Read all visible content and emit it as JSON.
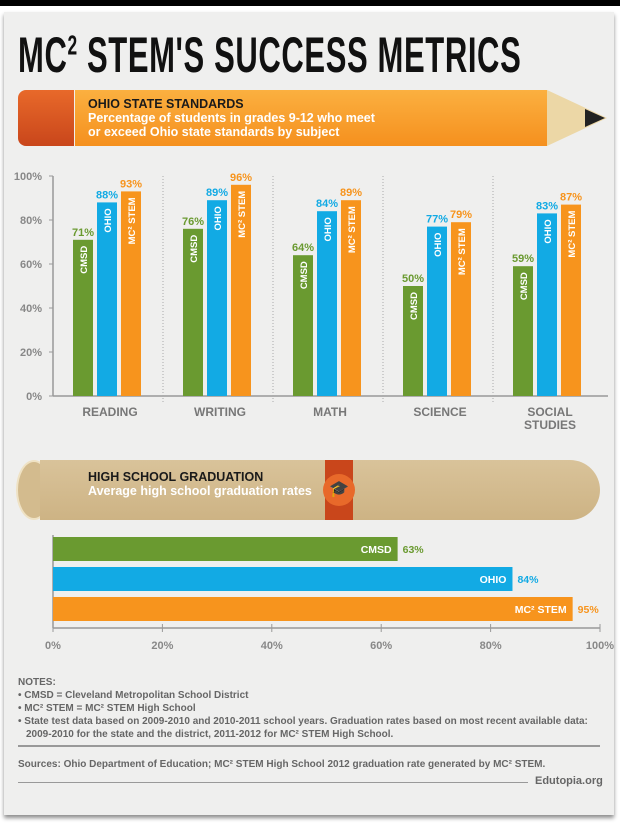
{
  "title": {
    "main": "MC",
    "sup": "2",
    "rest": " STEM'S SUCCESS METRICS"
  },
  "colors": {
    "cmsd": "#6a9a30",
    "ohio": "#12aae4",
    "stem": "#f7941d"
  },
  "section1": {
    "heading": "OHIO STATE STANDARDS",
    "subtitle": "Percentage of students in grades 9-12 who meet or exceed Ohio state standards by subject"
  },
  "section2": {
    "heading": "HIGH SCHOOL GRADUATION",
    "subtitle": "Average high school graduation rates",
    "icon": "graduation-cap-icon"
  },
  "chart_data": [
    {
      "type": "bar",
      "categories": [
        "READING",
        "WRITING",
        "MATH",
        "SCIENCE",
        "SOCIAL STUDIES"
      ],
      "series": [
        {
          "name": "CMSD",
          "values": [
            71,
            76,
            64,
            50,
            59
          ]
        },
        {
          "name": "OHIO",
          "values": [
            88,
            89,
            84,
            77,
            83
          ]
        },
        {
          "name": "MC² STEM",
          "values": [
            93,
            96,
            89,
            79,
            87
          ]
        }
      ],
      "ylim": [
        0,
        100
      ],
      "yticks": [
        "0%",
        "20%",
        "40%",
        "60%",
        "80%",
        "100%"
      ]
    },
    {
      "type": "bar",
      "orientation": "horizontal",
      "categories": [
        "CMSD",
        "OHIO",
        "MC² STEM"
      ],
      "values": [
        63,
        84,
        95
      ],
      "xlim": [
        0,
        100
      ],
      "xticks": [
        "0%",
        "20%",
        "40%",
        "60%",
        "80%",
        "100%"
      ]
    }
  ],
  "notes": {
    "heading": "NOTES:",
    "items": [
      "CMSD = Cleveland Metropolitan School District",
      "MC² STEM = MC² STEM High School",
      "State test data based on 2009-2010 and 2010-2011 school years. Graduation rates based on most recent available data: 2009-2010 for the state and the district, 2011-2012 for MC² STEM High School."
    ]
  },
  "sources": "Sources: Ohio Department of Education; MC² STEM High School 2012 graduation rate generated by MC² STEM.",
  "credit": "Edutopia.org"
}
